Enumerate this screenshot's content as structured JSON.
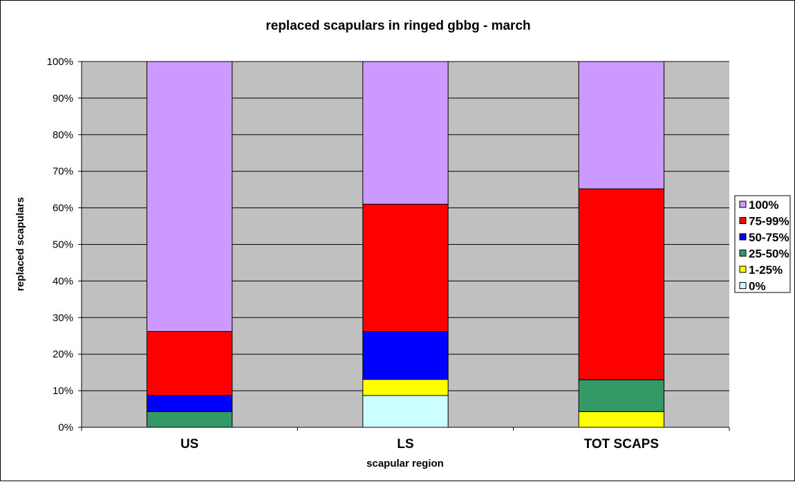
{
  "chart_data": {
    "type": "bar",
    "stacked": true,
    "percent_stacked": true,
    "title": "replaced scapulars in ringed gbbg - march",
    "xlabel": "scapular region",
    "ylabel": "replaced scapulars",
    "categories": [
      "US",
      "LS",
      "TOT SCAPS"
    ],
    "ylim": [
      0,
      100
    ],
    "yticks": [
      "0%",
      "10%",
      "20%",
      "30%",
      "40%",
      "50%",
      "60%",
      "70%",
      "80%",
      "90%",
      "100%"
    ],
    "grid": true,
    "legend_position": "right",
    "plot_background": "#c0c0c0",
    "series": [
      {
        "name": "0%",
        "color": "#ccffff",
        "values": [
          0,
          8.7,
          0
        ]
      },
      {
        "name": "1-25%",
        "color": "#ffff00",
        "values": [
          0,
          4.4,
          4.3
        ]
      },
      {
        "name": "25-50%",
        "color": "#339966",
        "values": [
          4.3,
          0,
          8.7
        ]
      },
      {
        "name": "50-75%",
        "color": "#0000ff",
        "values": [
          4.4,
          13.1,
          0
        ]
      },
      {
        "name": "75-99%",
        "color": "#ff0000",
        "values": [
          17.5,
          34.8,
          52.2
        ]
      },
      {
        "name": "100%",
        "color": "#cc99ff",
        "values": [
          73.8,
          39.0,
          34.8
        ]
      }
    ]
  }
}
